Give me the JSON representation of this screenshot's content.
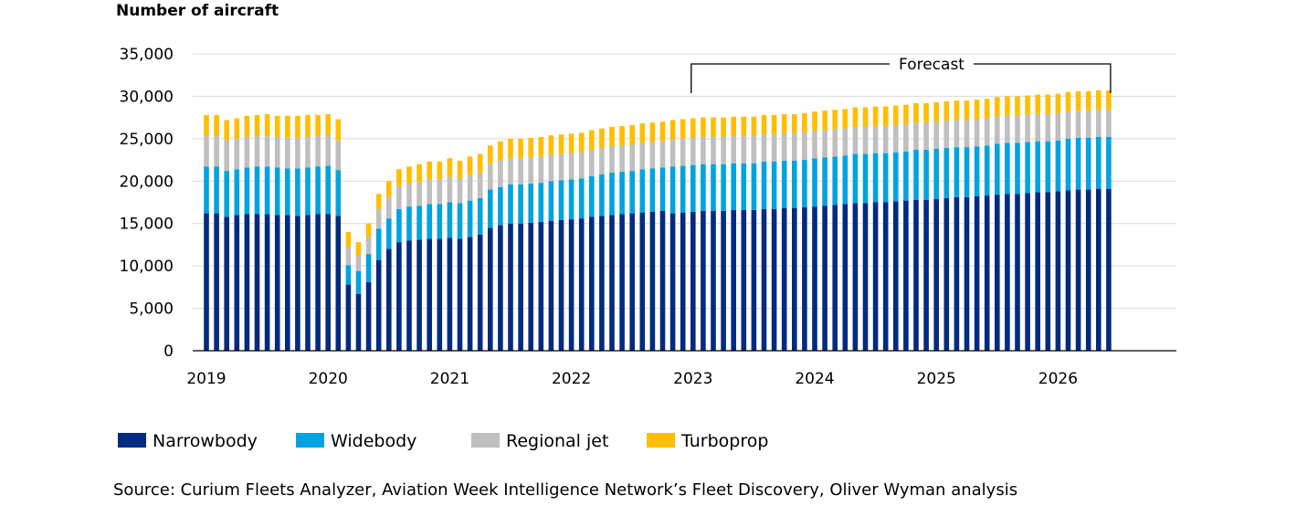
{
  "chart_data": {
    "type": "bar",
    "stacked": true,
    "ylabel": "Number of aircraft",
    "ylim": [
      0,
      35000
    ],
    "yticks": [
      0,
      5000,
      10000,
      15000,
      20000,
      25000,
      30000,
      35000
    ],
    "ytick_labels": [
      "0",
      "5,000",
      "10,000",
      "15,000",
      "20,000",
      "25,000",
      "30,000",
      "35,000"
    ],
    "grid": "horizontal",
    "x_start": "2019-01",
    "x_frequency": "monthly",
    "xtick_labels": [
      "2019",
      "2020",
      "2021",
      "2022",
      "2023",
      "2024",
      "2025",
      "2026"
    ],
    "forecast_label": "Forecast",
    "forecast_start": "2023-01",
    "legend_position": "bottom",
    "source": "Source: Curium Fleets Analyzer, Aviation Week Intelligence Network’s Fleet Discovery, Oliver Wyman analysis",
    "series": [
      {
        "name": "Narrowbody",
        "color": "#002b7f",
        "values": [
          16200,
          16200,
          15800,
          16000,
          16100,
          16100,
          16100,
          16000,
          16000,
          15900,
          16000,
          16100,
          16100,
          15900,
          7800,
          6700,
          8100,
          10700,
          12000,
          12800,
          13000,
          13100,
          13200,
          13200,
          13300,
          13200,
          13400,
          13700,
          14500,
          14800,
          15000,
          15000,
          15100,
          15200,
          15300,
          15400,
          15500,
          15600,
          15800,
          15900,
          16000,
          16100,
          16200,
          16300,
          16400,
          16500,
          16200,
          16300,
          16400,
          16500,
          16500,
          16500,
          16600,
          16600,
          16600,
          16700,
          16700,
          16800,
          16800,
          16900,
          17000,
          17100,
          17200,
          17300,
          17400,
          17400,
          17500,
          17500,
          17600,
          17700,
          17800,
          17800,
          17900,
          18000,
          18100,
          18100,
          18200,
          18300,
          18400,
          18500,
          18500,
          18600,
          18700,
          18700,
          18800,
          18900,
          19000,
          19000,
          19100,
          19100
        ]
      },
      {
        "name": "Widebody",
        "color": "#00a3e0",
        "values": [
          5500,
          5500,
          5400,
          5400,
          5500,
          5600,
          5600,
          5600,
          5500,
          5600,
          5600,
          5600,
          5700,
          5400,
          2300,
          2700,
          3300,
          3700,
          3600,
          3900,
          4000,
          4000,
          4100,
          4100,
          4200,
          4200,
          4300,
          4300,
          4500,
          4500,
          4600,
          4600,
          4600,
          4600,
          4700,
          4700,
          4700,
          4700,
          4800,
          4900,
          5000,
          5000,
          5000,
          5100,
          5100,
          5100,
          5500,
          5500,
          5500,
          5500,
          5500,
          5500,
          5500,
          5500,
          5500,
          5600,
          5600,
          5600,
          5600,
          5600,
          5700,
          5700,
          5700,
          5700,
          5800,
          5800,
          5800,
          5800,
          5800,
          5800,
          5900,
          5900,
          5900,
          5900,
          5900,
          5900,
          5900,
          5900,
          6000,
          6000,
          6000,
          6000,
          6000,
          6000,
          6000,
          6100,
          6100,
          6100,
          6100,
          6100
        ]
      },
      {
        "name": "Regional jet",
        "color": "#bfbfbf",
        "values": [
          3600,
          3600,
          3600,
          3600,
          3600,
          3600,
          3600,
          3600,
          3600,
          3600,
          3600,
          3600,
          3600,
          3500,
          2100,
          1800,
          2000,
          2300,
          2500,
          2700,
          2700,
          2800,
          2900,
          2900,
          3000,
          2900,
          3000,
          3000,
          3000,
          3100,
          3100,
          3100,
          3100,
          3100,
          3100,
          3100,
          3100,
          3100,
          3100,
          3100,
          3100,
          3100,
          3100,
          3100,
          3100,
          3100,
          3200,
          3200,
          3200,
          3200,
          3200,
          3200,
          3200,
          3200,
          3200,
          3200,
          3200,
          3200,
          3200,
          3200,
          3200,
          3200,
          3200,
          3200,
          3200,
          3200,
          3200,
          3200,
          3200,
          3200,
          3200,
          3200,
          3200,
          3200,
          3200,
          3200,
          3200,
          3200,
          3200,
          3200,
          3200,
          3200,
          3200,
          3200,
          3200,
          3200,
          3200,
          3200,
          3200,
          3200
        ]
      },
      {
        "name": "Turboprop",
        "color": "#ffbe00",
        "values": [
          2500,
          2500,
          2400,
          2400,
          2500,
          2500,
          2600,
          2500,
          2600,
          2600,
          2600,
          2500,
          2500,
          2500,
          1800,
          1600,
          1600,
          1800,
          1900,
          2000,
          2000,
          2100,
          2100,
          2100,
          2200,
          2100,
          2200,
          2200,
          2200,
          2300,
          2300,
          2300,
          2300,
          2300,
          2300,
          2300,
          2300,
          2300,
          2300,
          2300,
          2300,
          2300,
          2300,
          2300,
          2300,
          2300,
          2300,
          2300,
          2300,
          2300,
          2300,
          2300,
          2300,
          2300,
          2300,
          2300,
          2300,
          2300,
          2300,
          2300,
          2300,
          2300,
          2300,
          2300,
          2300,
          2300,
          2300,
          2300,
          2300,
          2300,
          2300,
          2300,
          2300,
          2300,
          2300,
          2300,
          2300,
          2300,
          2300,
          2300,
          2300,
          2300,
          2300,
          2300,
          2300,
          2300,
          2300,
          2300,
          2300,
          2300
        ]
      }
    ]
  }
}
